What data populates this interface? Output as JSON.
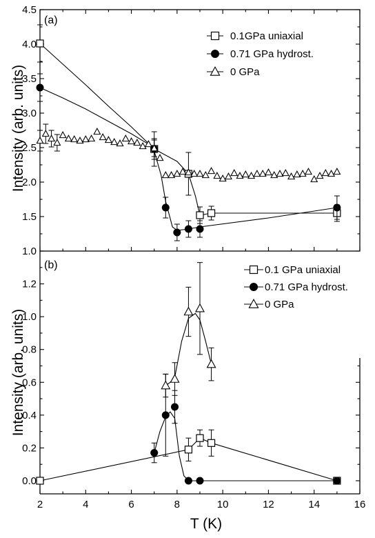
{
  "chart_data": [
    {
      "type": "line",
      "panel_label": "(a)",
      "ylabel": "Intensity (arb. units)",
      "xlabel": "",
      "xlim": [
        2,
        16
      ],
      "ylim": [
        1.0,
        4.5
      ],
      "xticks": [
        2,
        4,
        6,
        8,
        10,
        12,
        14,
        16
      ],
      "yticks": [
        "1.0",
        "1.5",
        "2.0",
        "2.5",
        "3.0",
        "3.5",
        "4.0",
        "4.5"
      ],
      "grid": false,
      "legend_position": "top-right",
      "series": [
        {
          "name": "0.1GPa uniaxial",
          "marker": "square-open",
          "points": [
            {
              "x": 2.0,
              "y": 4.01,
              "err": 0.27
            },
            {
              "x": 7.0,
              "y": 2.48,
              "err": 0.25
            },
            {
              "x": 8.5,
              "y": 2.12,
              "err": 0.31
            },
            {
              "x": 9.0,
              "y": 1.52,
              "err": 0.12
            },
            {
              "x": 9.5,
              "y": 1.55,
              "err": 0.1
            },
            {
              "x": 15.0,
              "y": 1.55,
              "err": 0.12
            }
          ],
          "curve": [
            [
              2.0,
              4.01
            ],
            [
              3.0,
              3.71
            ],
            [
              4.0,
              3.41
            ],
            [
              5.0,
              3.1
            ],
            [
              6.0,
              2.8
            ],
            [
              7.0,
              2.48
            ],
            [
              7.5,
              2.39
            ],
            [
              8.0,
              2.3
            ],
            [
              8.5,
              2.12
            ],
            [
              8.8,
              1.8
            ],
            [
              9.0,
              1.52
            ],
            [
              9.5,
              1.55
            ],
            [
              15.0,
              1.55
            ]
          ]
        },
        {
          "name": "0.71 GPa hydrost.",
          "marker": "circle-filled",
          "points": [
            {
              "x": 2.0,
              "y": 3.37,
              "err": 0.2
            },
            {
              "x": 7.0,
              "y": 2.48,
              "err": 0.15
            },
            {
              "x": 7.5,
              "y": 1.63,
              "err": 0.15
            },
            {
              "x": 8.0,
              "y": 1.27,
              "err": 0.12
            },
            {
              "x": 8.5,
              "y": 1.32,
              "err": 0.12
            },
            {
              "x": 9.0,
              "y": 1.32,
              "err": 0.12
            },
            {
              "x": 15.0,
              "y": 1.63,
              "err": 0.17
            }
          ],
          "curve": [
            [
              2.0,
              3.37
            ],
            [
              3.0,
              3.22
            ],
            [
              4.0,
              3.06
            ],
            [
              5.0,
              2.88
            ],
            [
              6.0,
              2.7
            ],
            [
              6.7,
              2.56
            ],
            [
              7.0,
              2.45
            ],
            [
              7.3,
              2.1
            ],
            [
              7.5,
              1.72
            ],
            [
              7.8,
              1.35
            ],
            [
              8.0,
              1.3
            ],
            [
              8.5,
              1.32
            ],
            [
              9.0,
              1.35
            ],
            [
              12.0,
              1.48
            ],
            [
              15.0,
              1.63
            ]
          ]
        },
        {
          "name": "0 GPa",
          "marker": "triangle-open",
          "points": [
            {
              "x": 2.0,
              "y": 2.6
            },
            {
              "x": 2.25,
              "y": 2.7
            },
            {
              "x": 2.5,
              "y": 2.63
            },
            {
              "x": 2.75,
              "y": 2.57
            },
            {
              "x": 3.0,
              "y": 2.68
            },
            {
              "x": 3.25,
              "y": 2.63
            },
            {
              "x": 3.5,
              "y": 2.62
            },
            {
              "x": 3.75,
              "y": 2.6
            },
            {
              "x": 4.0,
              "y": 2.62
            },
            {
              "x": 4.25,
              "y": 2.63
            },
            {
              "x": 4.5,
              "y": 2.73
            },
            {
              "x": 4.75,
              "y": 2.65
            },
            {
              "x": 5.0,
              "y": 2.61
            },
            {
              "x": 5.25,
              "y": 2.58
            },
            {
              "x": 5.5,
              "y": 2.56
            },
            {
              "x": 5.75,
              "y": 2.63
            },
            {
              "x": 6.0,
              "y": 2.59
            },
            {
              "x": 6.25,
              "y": 2.57
            },
            {
              "x": 6.5,
              "y": 2.52
            },
            {
              "x": 6.75,
              "y": 2.55
            },
            {
              "x": 7.0,
              "y": 2.49
            },
            {
              "x": 7.25,
              "y": 2.35
            },
            {
              "x": 7.5,
              "y": 2.1
            },
            {
              "x": 7.75,
              "y": 2.1
            },
            {
              "x": 8.0,
              "y": 2.12
            },
            {
              "x": 8.25,
              "y": 2.15
            },
            {
              "x": 8.5,
              "y": 2.14
            },
            {
              "x": 8.75,
              "y": 2.12
            },
            {
              "x": 9.0,
              "y": 2.12
            },
            {
              "x": 9.25,
              "y": 2.1
            },
            {
              "x": 9.5,
              "y": 2.16
            },
            {
              "x": 9.75,
              "y": 2.09
            },
            {
              "x": 10.0,
              "y": 2.05
            },
            {
              "x": 10.25,
              "y": 2.08
            },
            {
              "x": 10.5,
              "y": 2.13
            },
            {
              "x": 10.75,
              "y": 2.09
            },
            {
              "x": 11.0,
              "y": 2.11
            },
            {
              "x": 11.25,
              "y": 2.09
            },
            {
              "x": 11.5,
              "y": 2.12
            },
            {
              "x": 11.75,
              "y": 2.12
            },
            {
              "x": 12.0,
              "y": 2.14
            },
            {
              "x": 12.25,
              "y": 2.1
            },
            {
              "x": 12.5,
              "y": 2.12
            },
            {
              "x": 12.75,
              "y": 2.13
            },
            {
              "x": 13.0,
              "y": 2.08
            },
            {
              "x": 13.25,
              "y": 2.11
            },
            {
              "x": 13.5,
              "y": 2.12
            },
            {
              "x": 13.75,
              "y": 2.15
            },
            {
              "x": 14.0,
              "y": 2.04
            },
            {
              "x": 14.25,
              "y": 2.09
            },
            {
              "x": 14.5,
              "y": 2.13
            },
            {
              "x": 14.75,
              "y": 2.12
            },
            {
              "x": 15.0,
              "y": 2.15
            }
          ],
          "errorbars": [
            {
              "x": 2.0,
              "y": 2.6,
              "err": 0.15
            },
            {
              "x": 2.25,
              "y": 2.7,
              "err": 0.14
            },
            {
              "x": 2.5,
              "y": 2.63,
              "err": 0.12
            },
            {
              "x": 2.75,
              "y": 2.57,
              "err": 0.12
            },
            {
              "x": 7.0,
              "y": 2.49,
              "err": 0.12
            }
          ]
        }
      ]
    },
    {
      "type": "line",
      "panel_label": "(b)",
      "ylabel": "Intensity (arb. units)",
      "xlabel": "T (K)",
      "xlim": [
        2,
        16
      ],
      "ylim": [
        -0.08,
        1.4
      ],
      "xticks": [
        2,
        4,
        6,
        8,
        10,
        12,
        14,
        16
      ],
      "yticks": [
        "0.0",
        "0.2",
        "0.4",
        "0.6",
        "0.8",
        "1.0",
        "1.2"
      ],
      "grid": false,
      "legend_position": "top-right",
      "series": [
        {
          "name": "0.1 GPa uniaxial",
          "marker": "square-open",
          "points": [
            {
              "x": 2.0,
              "y": 0.0
            },
            {
              "x": 8.5,
              "y": 0.19,
              "err": 0.07
            },
            {
              "x": 9.0,
              "y": 0.26,
              "err": 0.05
            },
            {
              "x": 9.5,
              "y": 0.23,
              "err": 0.08
            },
            {
              "x": 15.0,
              "y": 0.0
            }
          ],
          "curve": [
            [
              2.0,
              0.0
            ],
            [
              8.5,
              0.19
            ],
            [
              9.0,
              0.26
            ],
            [
              9.5,
              0.23
            ],
            [
              15.0,
              0.0
            ]
          ]
        },
        {
          "name": "0.71 GPa hydrost.",
          "marker": "circle-filled",
          "points": [
            {
              "x": 7.0,
              "y": 0.17,
              "err": 0.06
            },
            {
              "x": 7.5,
              "y": 0.4,
              "err": 0.25
            },
            {
              "x": 7.9,
              "y": 0.45,
              "err": 0.1
            },
            {
              "x": 8.5,
              "y": 0.0
            },
            {
              "x": 9.0,
              "y": 0.0
            },
            {
              "x": 15.0,
              "y": 0.0
            }
          ],
          "curve": [
            [
              7.0,
              0.17
            ],
            [
              7.25,
              0.3
            ],
            [
              7.5,
              0.39
            ],
            [
              7.7,
              0.42
            ],
            [
              7.9,
              0.38
            ],
            [
              8.1,
              0.15
            ],
            [
              8.3,
              0.03
            ],
            [
              8.5,
              0.0
            ],
            [
              9.0,
              0.0
            ],
            [
              15.0,
              0.0
            ]
          ]
        },
        {
          "name": "0 GPa",
          "marker": "triangle-open",
          "points": [
            {
              "x": 7.5,
              "y": 0.58,
              "err": 0.07
            },
            {
              "x": 7.9,
              "y": 0.62,
              "err": 0.1
            },
            {
              "x": 8.5,
              "y": 1.03,
              "err": 0.15
            },
            {
              "x": 9.0,
              "y": 1.05,
              "err": 0.28
            },
            {
              "x": 9.5,
              "y": 0.71,
              "err": 0.1
            }
          ],
          "curve": [
            [
              7.5,
              0.58
            ],
            [
              7.7,
              0.6
            ],
            [
              7.9,
              0.63
            ],
            [
              8.2,
              0.85
            ],
            [
              8.5,
              0.99
            ],
            [
              8.8,
              1.02
            ],
            [
              9.0,
              0.98
            ],
            [
              9.25,
              0.85
            ],
            [
              9.5,
              0.71
            ]
          ]
        }
      ]
    }
  ]
}
